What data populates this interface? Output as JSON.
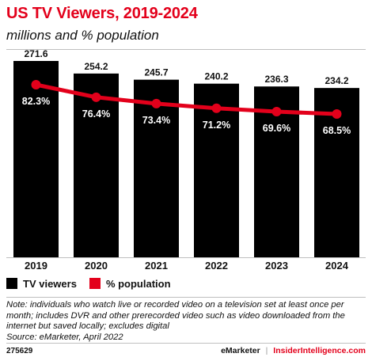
{
  "chart_data": {
    "type": "bar",
    "title": "US TV Viewers, 2019-2024",
    "subtitle": "millions and % population",
    "categories": [
      "2019",
      "2020",
      "2021",
      "2022",
      "2023",
      "2024"
    ],
    "series": [
      {
        "name": "TV viewers",
        "type": "bar",
        "values": [
          271.6,
          254.2,
          245.7,
          240.2,
          236.3,
          234.2
        ],
        "labels": [
          "271.6",
          "254.2",
          "245.7",
          "240.2",
          "236.3",
          "234.2"
        ],
        "color": "#000000"
      },
      {
        "name": "% population",
        "type": "line",
        "values": [
          82.3,
          76.4,
          73.4,
          71.2,
          69.6,
          68.5
        ],
        "labels": [
          "82.3%",
          "76.4%",
          "73.4%",
          "71.2%",
          "69.6%",
          "68.5%"
        ],
        "color": "#e3001b"
      }
    ],
    "bar_ylim": [
      0,
      271.6
    ],
    "line_ylim": [
      0,
      100
    ],
    "grid": false,
    "legend_position": "bottom-left"
  },
  "note": "Note: individuals who watch live or recorded video on a television set at least once per month; includes DVR and other prerecorded video such as video downloaded from the internet but saved locally; excludes digital",
  "source": "Source: eMarketer, April 2022",
  "chart_id": "275629",
  "brand_left": "eMarketer",
  "brand_sep": "|",
  "brand_right": "InsiderIntelligence.com"
}
